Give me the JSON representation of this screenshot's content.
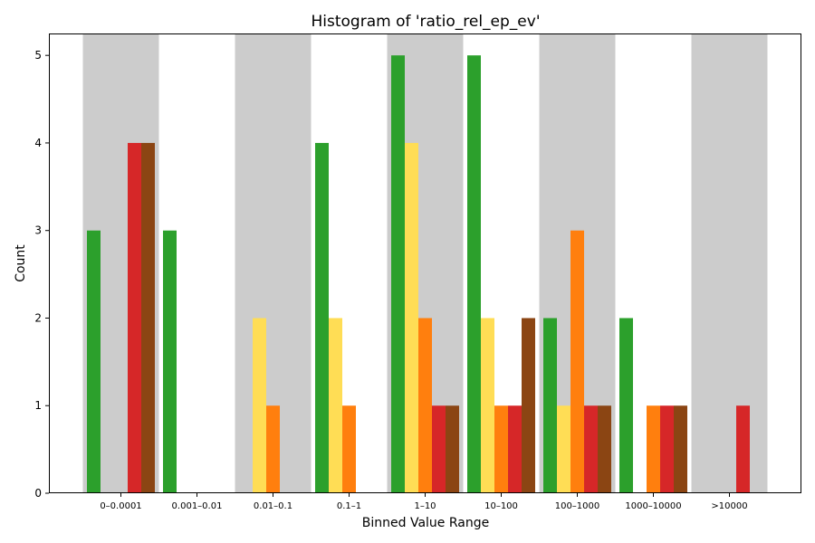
{
  "chart_data": {
    "type": "bar",
    "title": "Histogram of 'ratio_rel_ep_ev'",
    "xlabel": "Binned Value Range",
    "ylabel": "Count",
    "ylim": [
      0,
      5.25
    ],
    "yticks": [
      0,
      1,
      2,
      3,
      4,
      5
    ],
    "grid": false,
    "legend": "none",
    "categories": [
      "0–0.0001",
      "0.001–0.01",
      "0.01–0.1",
      "0.1–1",
      "1–10",
      "10–100",
      "100–1000",
      "1000–10000",
      ">10000"
    ],
    "alternating_band_color": "#cccccc",
    "series": [
      {
        "color": "#2ca02c",
        "values": [
          3,
          3,
          0,
          4,
          5,
          5,
          2,
          2,
          0
        ]
      },
      {
        "color": "#ffdd55",
        "values": [
          0,
          0,
          2,
          2,
          4,
          2,
          1,
          0,
          0
        ]
      },
      {
        "color": "#ff7f0e",
        "values": [
          0,
          0,
          1,
          1,
          2,
          1,
          3,
          1,
          0
        ]
      },
      {
        "color": "#d62728",
        "values": [
          4,
          0,
          0,
          0,
          1,
          1,
          1,
          1,
          1
        ]
      },
      {
        "color": "#8b4513",
        "values": [
          4,
          0,
          0,
          0,
          1,
          2,
          1,
          1,
          0
        ]
      }
    ]
  }
}
